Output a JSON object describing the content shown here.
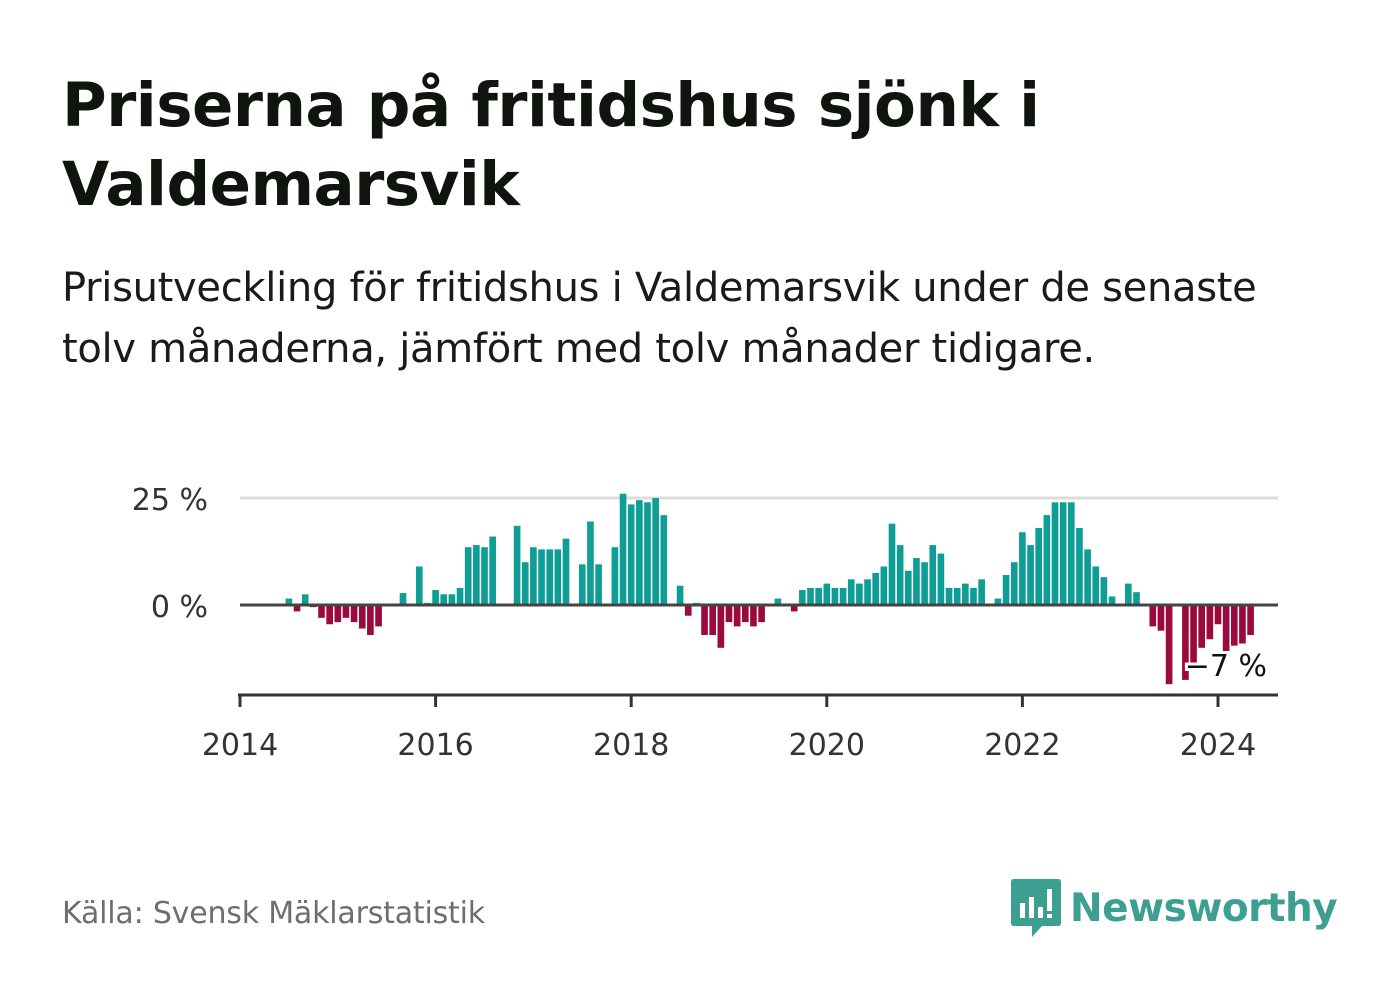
{
  "title": "Priserna på fritidshus sjönk i Valdemarsvik",
  "subtitle": "Prisutveckling för fritidshus i Valdemarsvik under de senaste tolv månaderna, jämfört med tolv månader tidigare.",
  "source": "Källa: Svensk Mäklarstatistik",
  "brand": "Newsworthy",
  "colors": {
    "positive": "#0f9e96",
    "negative": "#9a0a3c",
    "grid": "#dcdcdc",
    "axis": "#444444",
    "brand": "#3c9f92"
  },
  "chart_data": {
    "type": "bar",
    "title": "Priserna på fritidshus sjönk i Valdemarsvik",
    "xlabel": "",
    "ylabel": "",
    "x_start": "2014-01",
    "x_end": "2024-01",
    "xlim": [
      2014.0,
      2024.6
    ],
    "ylim": [
      -21,
      25
    ],
    "y_ticks": [
      {
        "value": 25,
        "label": "25 %"
      },
      {
        "value": 0,
        "label": "0 %"
      }
    ],
    "x_ticks": [
      {
        "value": 2014,
        "label": "2014"
      },
      {
        "value": 2016,
        "label": "2016"
      },
      {
        "value": 2018,
        "label": "2018"
      },
      {
        "value": 2020,
        "label": "2020"
      },
      {
        "value": 2022,
        "label": "2022"
      },
      {
        "value": 2024,
        "label": "2024"
      }
    ],
    "annotation": {
      "label": "−7 %",
      "value": -7,
      "x": "2024-01"
    },
    "values": [
      0,
      0,
      0,
      0,
      0,
      0,
      1.5,
      -1.5,
      2.5,
      -0.5,
      -3,
      -4.5,
      -4,
      -3,
      -4,
      -5.5,
      -7,
      -5,
      0,
      0,
      2.8,
      0.3,
      9,
      0.5,
      3.5,
      2.5,
      2.5,
      4,
      13.5,
      14,
      13.5,
      16,
      0,
      0,
      18.5,
      10,
      13.5,
      13,
      13,
      13,
      15.5,
      0,
      9.5,
      19.5,
      9.5,
      0,
      13.5,
      26,
      23.5,
      24.5,
      24,
      25,
      21,
      0,
      4.5,
      -2.5,
      0.5,
      -7,
      -7,
      -10,
      -4,
      -5,
      -4,
      -5,
      -4,
      0,
      1.5,
      0,
      -1.5,
      3.5,
      4,
      4,
      5,
      4,
      4,
      6,
      5,
      6,
      7.5,
      9,
      19,
      14,
      8,
      11,
      10,
      14,
      12,
      4,
      4,
      5,
      4,
      6,
      0,
      1.5,
      7,
      10,
      17,
      14,
      18,
      21,
      24,
      24,
      24,
      18,
      13,
      9,
      6.5,
      2,
      0,
      5,
      3,
      0,
      -5,
      -6,
      -18.5,
      0,
      -17.5,
      -13.5,
      -10,
      -8,
      -4.5,
      -12,
      -9.5,
      -9,
      -7
    ]
  }
}
